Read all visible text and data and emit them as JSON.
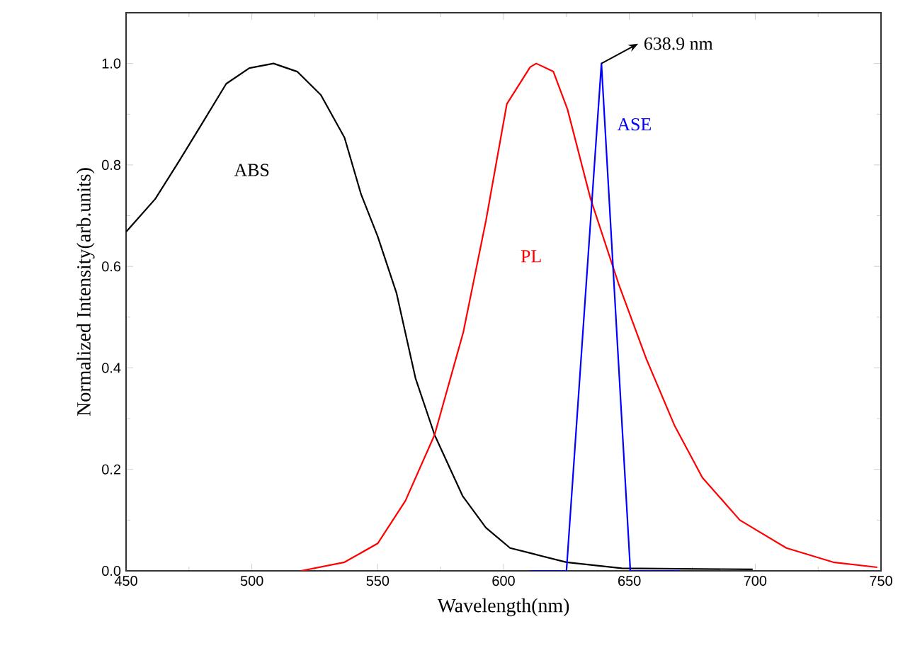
{
  "chart_data": {
    "type": "line",
    "xlabel": "Wavelength(nm)",
    "ylabel": "Normalized Intensity(arb.units)",
    "xlim": [
      450,
      750
    ],
    "ylim": [
      0,
      1.1
    ],
    "xticks": [
      450,
      500,
      550,
      600,
      650,
      700,
      750
    ],
    "yticks": [
      {
        "value": 0,
        "label": "0.0"
      },
      0.2,
      0.4,
      0.6,
      0.8,
      {
        "value": 1,
        "label": "1.0"
      }
    ],
    "grid": false,
    "legend": false,
    "marker": "none",
    "line_style": "solid",
    "series": [
      {
        "name": "ABS",
        "color": "#000000",
        "x": [
          450,
          461.6,
          471,
          480,
          489.8,
          499,
          508.6,
          518,
          527.4,
          536.8,
          543.4,
          550,
          557.5,
          565,
          572.6,
          583.8,
          593,
          602.6,
          610.6,
          625,
          647,
          670,
          699
        ],
        "values": [
          0.668,
          0.733,
          0.807,
          0.88,
          0.96,
          0.991,
          1.0,
          0.984,
          0.938,
          0.854,
          0.742,
          0.659,
          0.547,
          0.38,
          0.268,
          0.147,
          0.085,
          0.045,
          0.035,
          0.017,
          0.005,
          0.004,
          0.003
        ]
      },
      {
        "name": "PL",
        "color": "#ff0000",
        "x": [
          519.5,
          536.8,
          550,
          561,
          572.6,
          584,
          593,
          601.3,
          610.6,
          613,
          619.8,
          625.4,
          634.6,
          645.7,
          656.8,
          667.9,
          679,
          693.9,
          712.4,
          731,
          748.5
        ],
        "values": [
          0,
          0.017,
          0.054,
          0.138,
          0.268,
          0.47,
          0.69,
          0.92,
          0.993,
          1.0,
          0.984,
          0.91,
          0.733,
          0.566,
          0.417,
          0.287,
          0.184,
          0.1,
          0.045,
          0.017,
          0.007
        ]
      },
      {
        "name": "ASE",
        "color": "#0000ff",
        "x": [
          610.6,
          625,
          638.9,
          650.4,
          670
        ],
        "values": [
          0,
          0,
          1.0,
          0,
          0
        ]
      }
    ],
    "annotations": [
      {
        "text": "638.9 nm",
        "x": 638.9,
        "y": 1.0
      }
    ]
  }
}
